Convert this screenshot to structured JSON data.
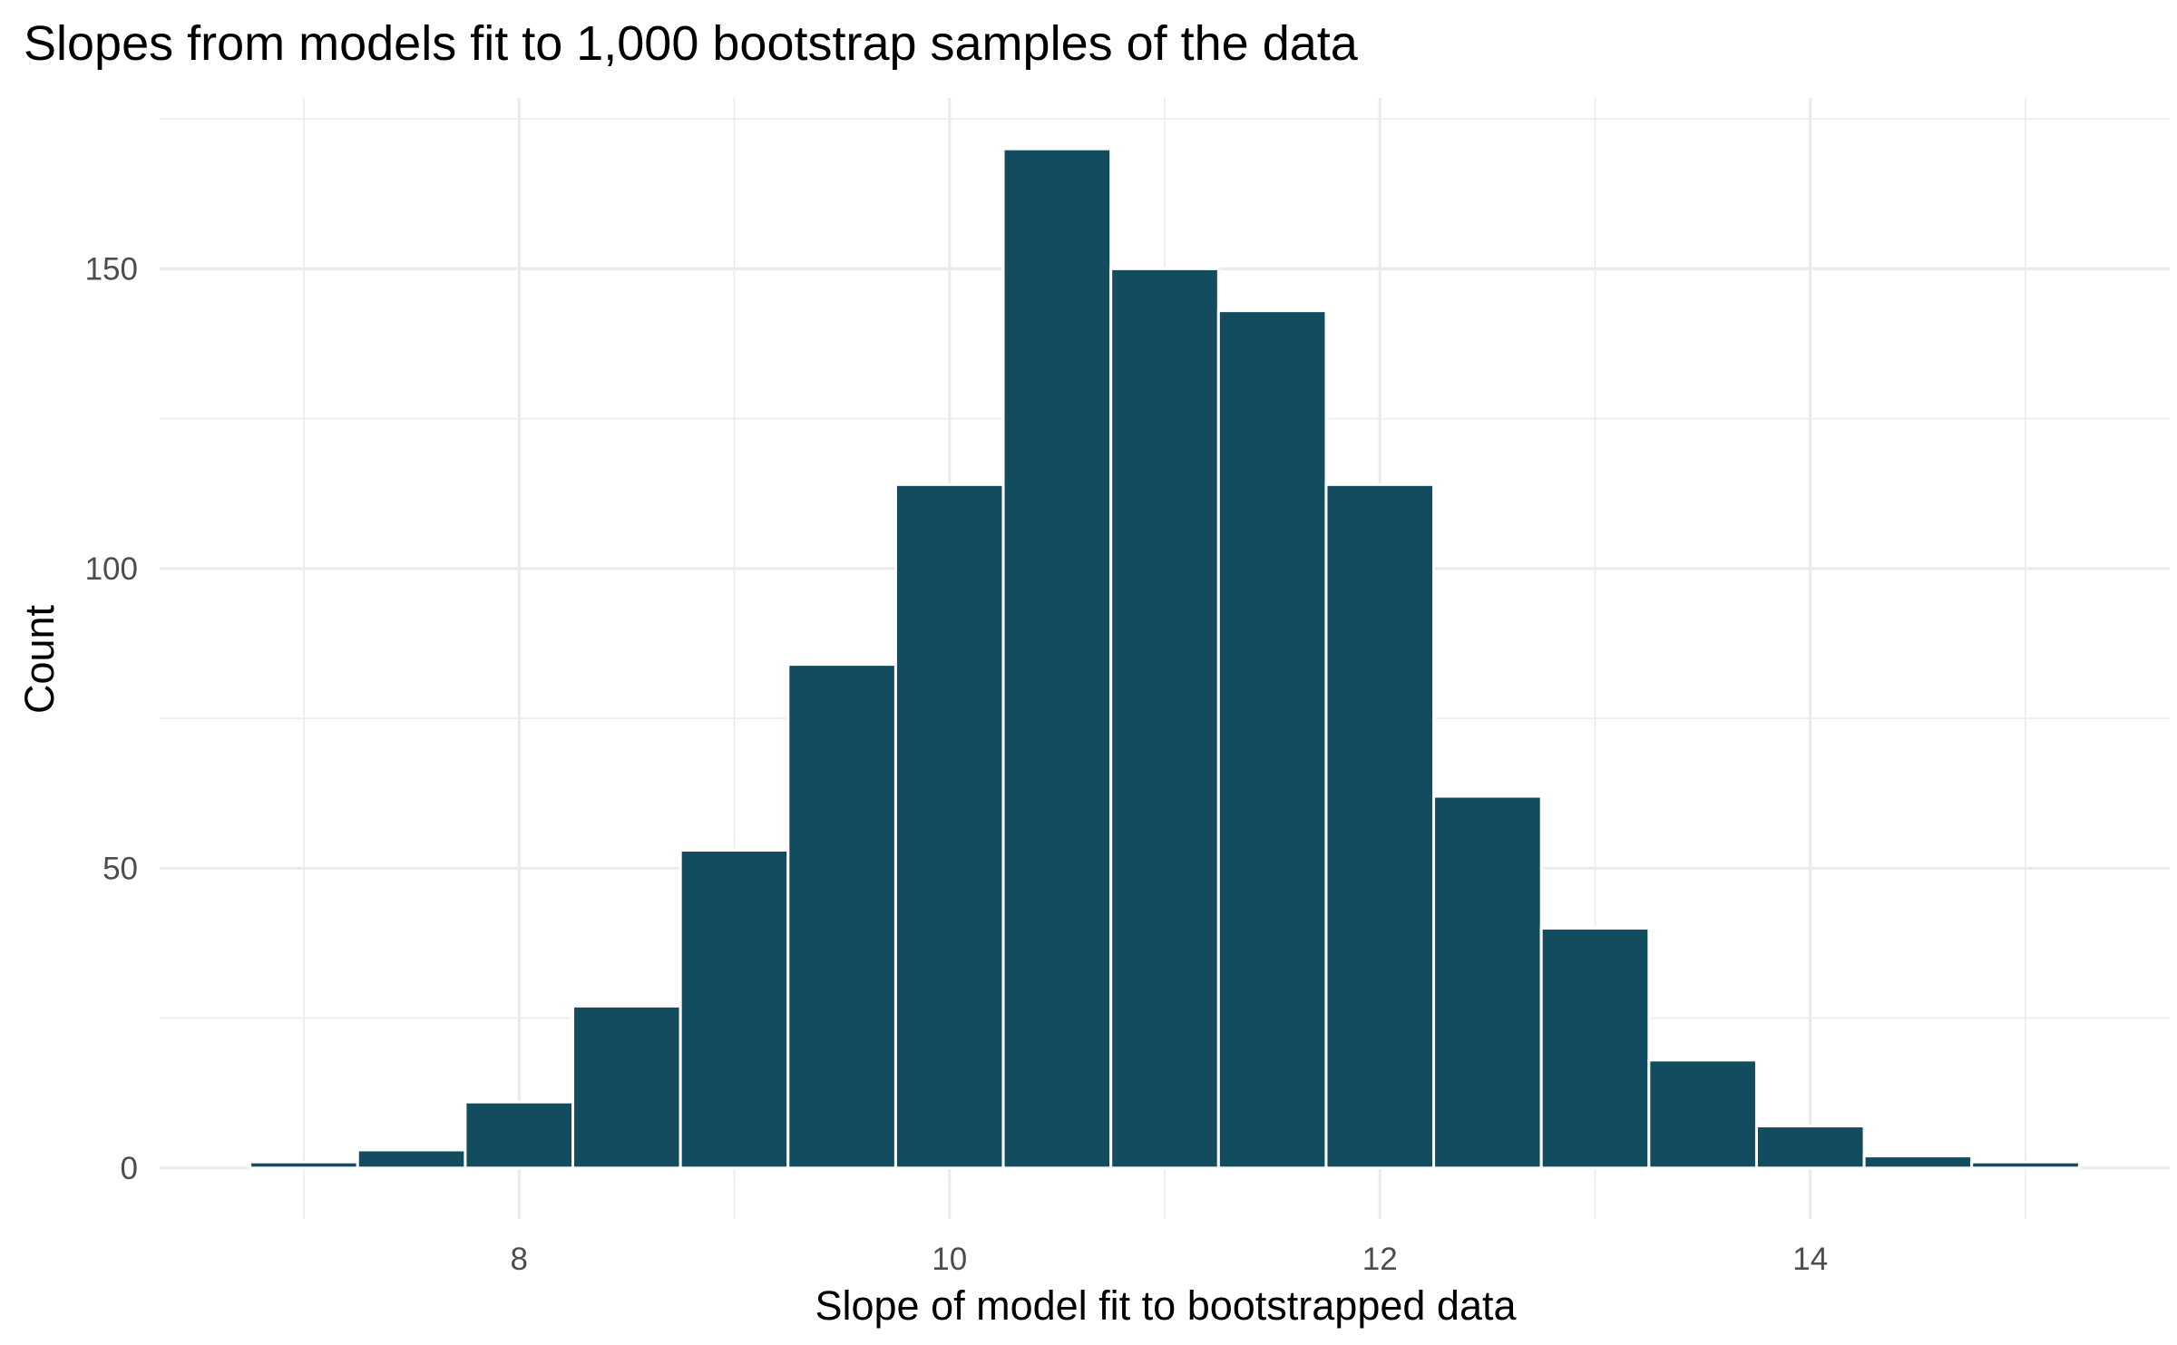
{
  "chart_data": {
    "type": "bar",
    "title": "Slopes from models fit to 1,000 bootstrap samples of the data",
    "xlabel": "Slope of model fit to bootstrapped data",
    "ylabel": "Count",
    "bin_width": 0.5,
    "bins": [
      {
        "start": 6.75,
        "end": 7.25,
        "count": 1
      },
      {
        "start": 7.25,
        "end": 7.75,
        "count": 3
      },
      {
        "start": 7.75,
        "end": 8.25,
        "count": 11
      },
      {
        "start": 8.25,
        "end": 8.75,
        "count": 27
      },
      {
        "start": 8.75,
        "end": 9.25,
        "count": 53
      },
      {
        "start": 9.25,
        "end": 9.75,
        "count": 84
      },
      {
        "start": 9.75,
        "end": 10.25,
        "count": 114
      },
      {
        "start": 10.25,
        "end": 10.75,
        "count": 170
      },
      {
        "start": 10.75,
        "end": 11.25,
        "count": 150
      },
      {
        "start": 11.25,
        "end": 11.75,
        "count": 143
      },
      {
        "start": 11.75,
        "end": 12.25,
        "count": 114
      },
      {
        "start": 12.25,
        "end": 12.75,
        "count": 62
      },
      {
        "start": 12.75,
        "end": 13.25,
        "count": 40
      },
      {
        "start": 13.25,
        "end": 13.75,
        "count": 18
      },
      {
        "start": 13.75,
        "end": 14.25,
        "count": 7
      },
      {
        "start": 14.25,
        "end": 14.75,
        "count": 2
      },
      {
        "start": 14.75,
        "end": 15.25,
        "count": 1
      }
    ],
    "xlim": [
      6.33,
      15.67
    ],
    "ylim": [
      -8.5,
      178.5
    ],
    "x_major_ticks": [
      8,
      10,
      12,
      14
    ],
    "x_tick_labels": [
      "8",
      "10",
      "12",
      "14"
    ],
    "x_minor_ticks": [
      7,
      9,
      11,
      13,
      15
    ],
    "y_major_ticks": [
      0,
      50,
      100,
      150
    ],
    "y_tick_labels": [
      "0",
      "50",
      "100",
      "150"
    ],
    "y_minor_ticks": [
      25,
      75,
      125,
      175
    ],
    "grid": true,
    "legend": "none",
    "bar_color": "#134b5f",
    "bar_outline_color": "#ffffff",
    "grid_color": "#ebebeb"
  }
}
